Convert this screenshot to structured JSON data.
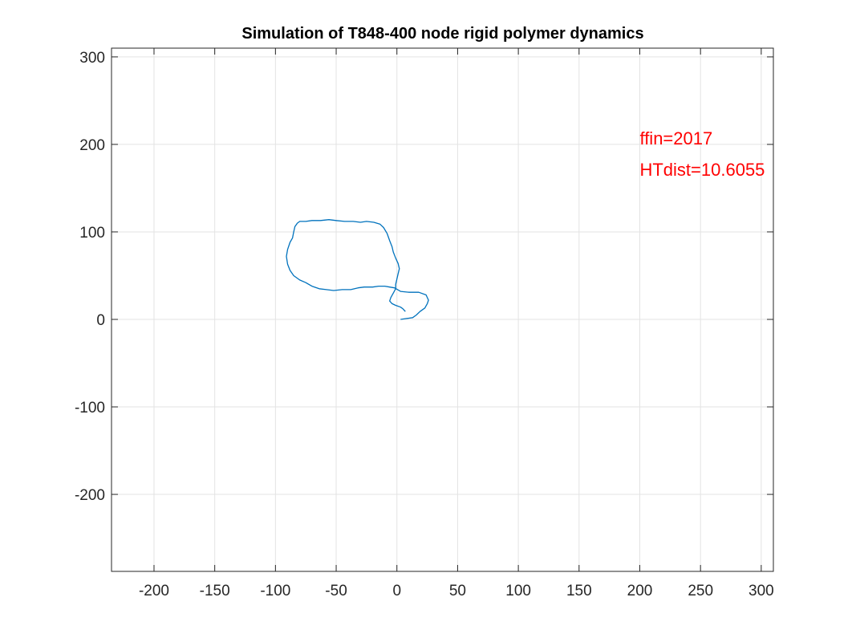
{
  "chart_data": {
    "type": "line",
    "title": "Simulation of T848-400 node rigid polymer dynamics",
    "xlabel": "",
    "ylabel": "",
    "xlim": [
      -235,
      310
    ],
    "ylim": [
      -288,
      310
    ],
    "x_ticks": [
      -200,
      -150,
      -100,
      -50,
      0,
      50,
      100,
      150,
      200,
      250,
      300
    ],
    "y_ticks": [
      -200,
      -100,
      0,
      100,
      200,
      300
    ],
    "grid": true,
    "legend": "none",
    "series": [
      {
        "color": "#0072BD",
        "points": [
          [
            3,
            0
          ],
          [
            8,
            1
          ],
          [
            13,
            2
          ],
          [
            16,
            5
          ],
          [
            19,
            9
          ],
          [
            23,
            13
          ],
          [
            25,
            18
          ],
          [
            26,
            22
          ],
          [
            24,
            28
          ],
          [
            18,
            31
          ],
          [
            10,
            31
          ],
          [
            3,
            32
          ],
          [
            -2,
            36
          ],
          [
            -6,
            37
          ],
          [
            -10,
            38
          ],
          [
            -15,
            38
          ],
          [
            -20,
            37
          ],
          [
            -27,
            37
          ],
          [
            -32,
            36
          ],
          [
            -38,
            34
          ],
          [
            -45,
            34
          ],
          [
            -52,
            33
          ],
          [
            -58,
            34
          ],
          [
            -64,
            35
          ],
          [
            -70,
            38
          ],
          [
            -75,
            42
          ],
          [
            -80,
            45
          ],
          [
            -85,
            50
          ],
          [
            -88,
            56
          ],
          [
            -90,
            63
          ],
          [
            -91,
            72
          ],
          [
            -90,
            80
          ],
          [
            -88,
            88
          ],
          [
            -86,
            93
          ],
          [
            -85,
            100
          ],
          [
            -84,
            106
          ],
          [
            -82,
            110
          ],
          [
            -80,
            112
          ],
          [
            -75,
            112
          ],
          [
            -70,
            113
          ],
          [
            -63,
            113
          ],
          [
            -56,
            114
          ],
          [
            -50,
            113
          ],
          [
            -43,
            112
          ],
          [
            -36,
            112
          ],
          [
            -30,
            111
          ],
          [
            -25,
            112
          ],
          [
            -19,
            111
          ],
          [
            -14,
            109
          ],
          [
            -11,
            105
          ],
          [
            -8,
            98
          ],
          [
            -6,
            90
          ],
          [
            -4,
            83
          ],
          [
            -3,
            77
          ],
          [
            -1,
            70
          ],
          [
            1,
            64
          ],
          [
            2,
            58
          ],
          [
            1,
            52
          ],
          [
            0,
            46
          ],
          [
            -1,
            40
          ],
          [
            -1,
            35
          ],
          [
            -3,
            30
          ],
          [
            -5,
            25
          ],
          [
            -6,
            21
          ],
          [
            -4,
            18
          ],
          [
            -1,
            16
          ],
          [
            3,
            14
          ],
          [
            5,
            12
          ],
          [
            7,
            9
          ]
        ]
      }
    ],
    "annotations": [
      {
        "text": "ffin=2017",
        "x": 200,
        "y": 200,
        "color": "#FF0000"
      },
      {
        "text": "HTdist=10.6055",
        "x": 200,
        "y": 164,
        "color": "#FF0000"
      }
    ]
  }
}
